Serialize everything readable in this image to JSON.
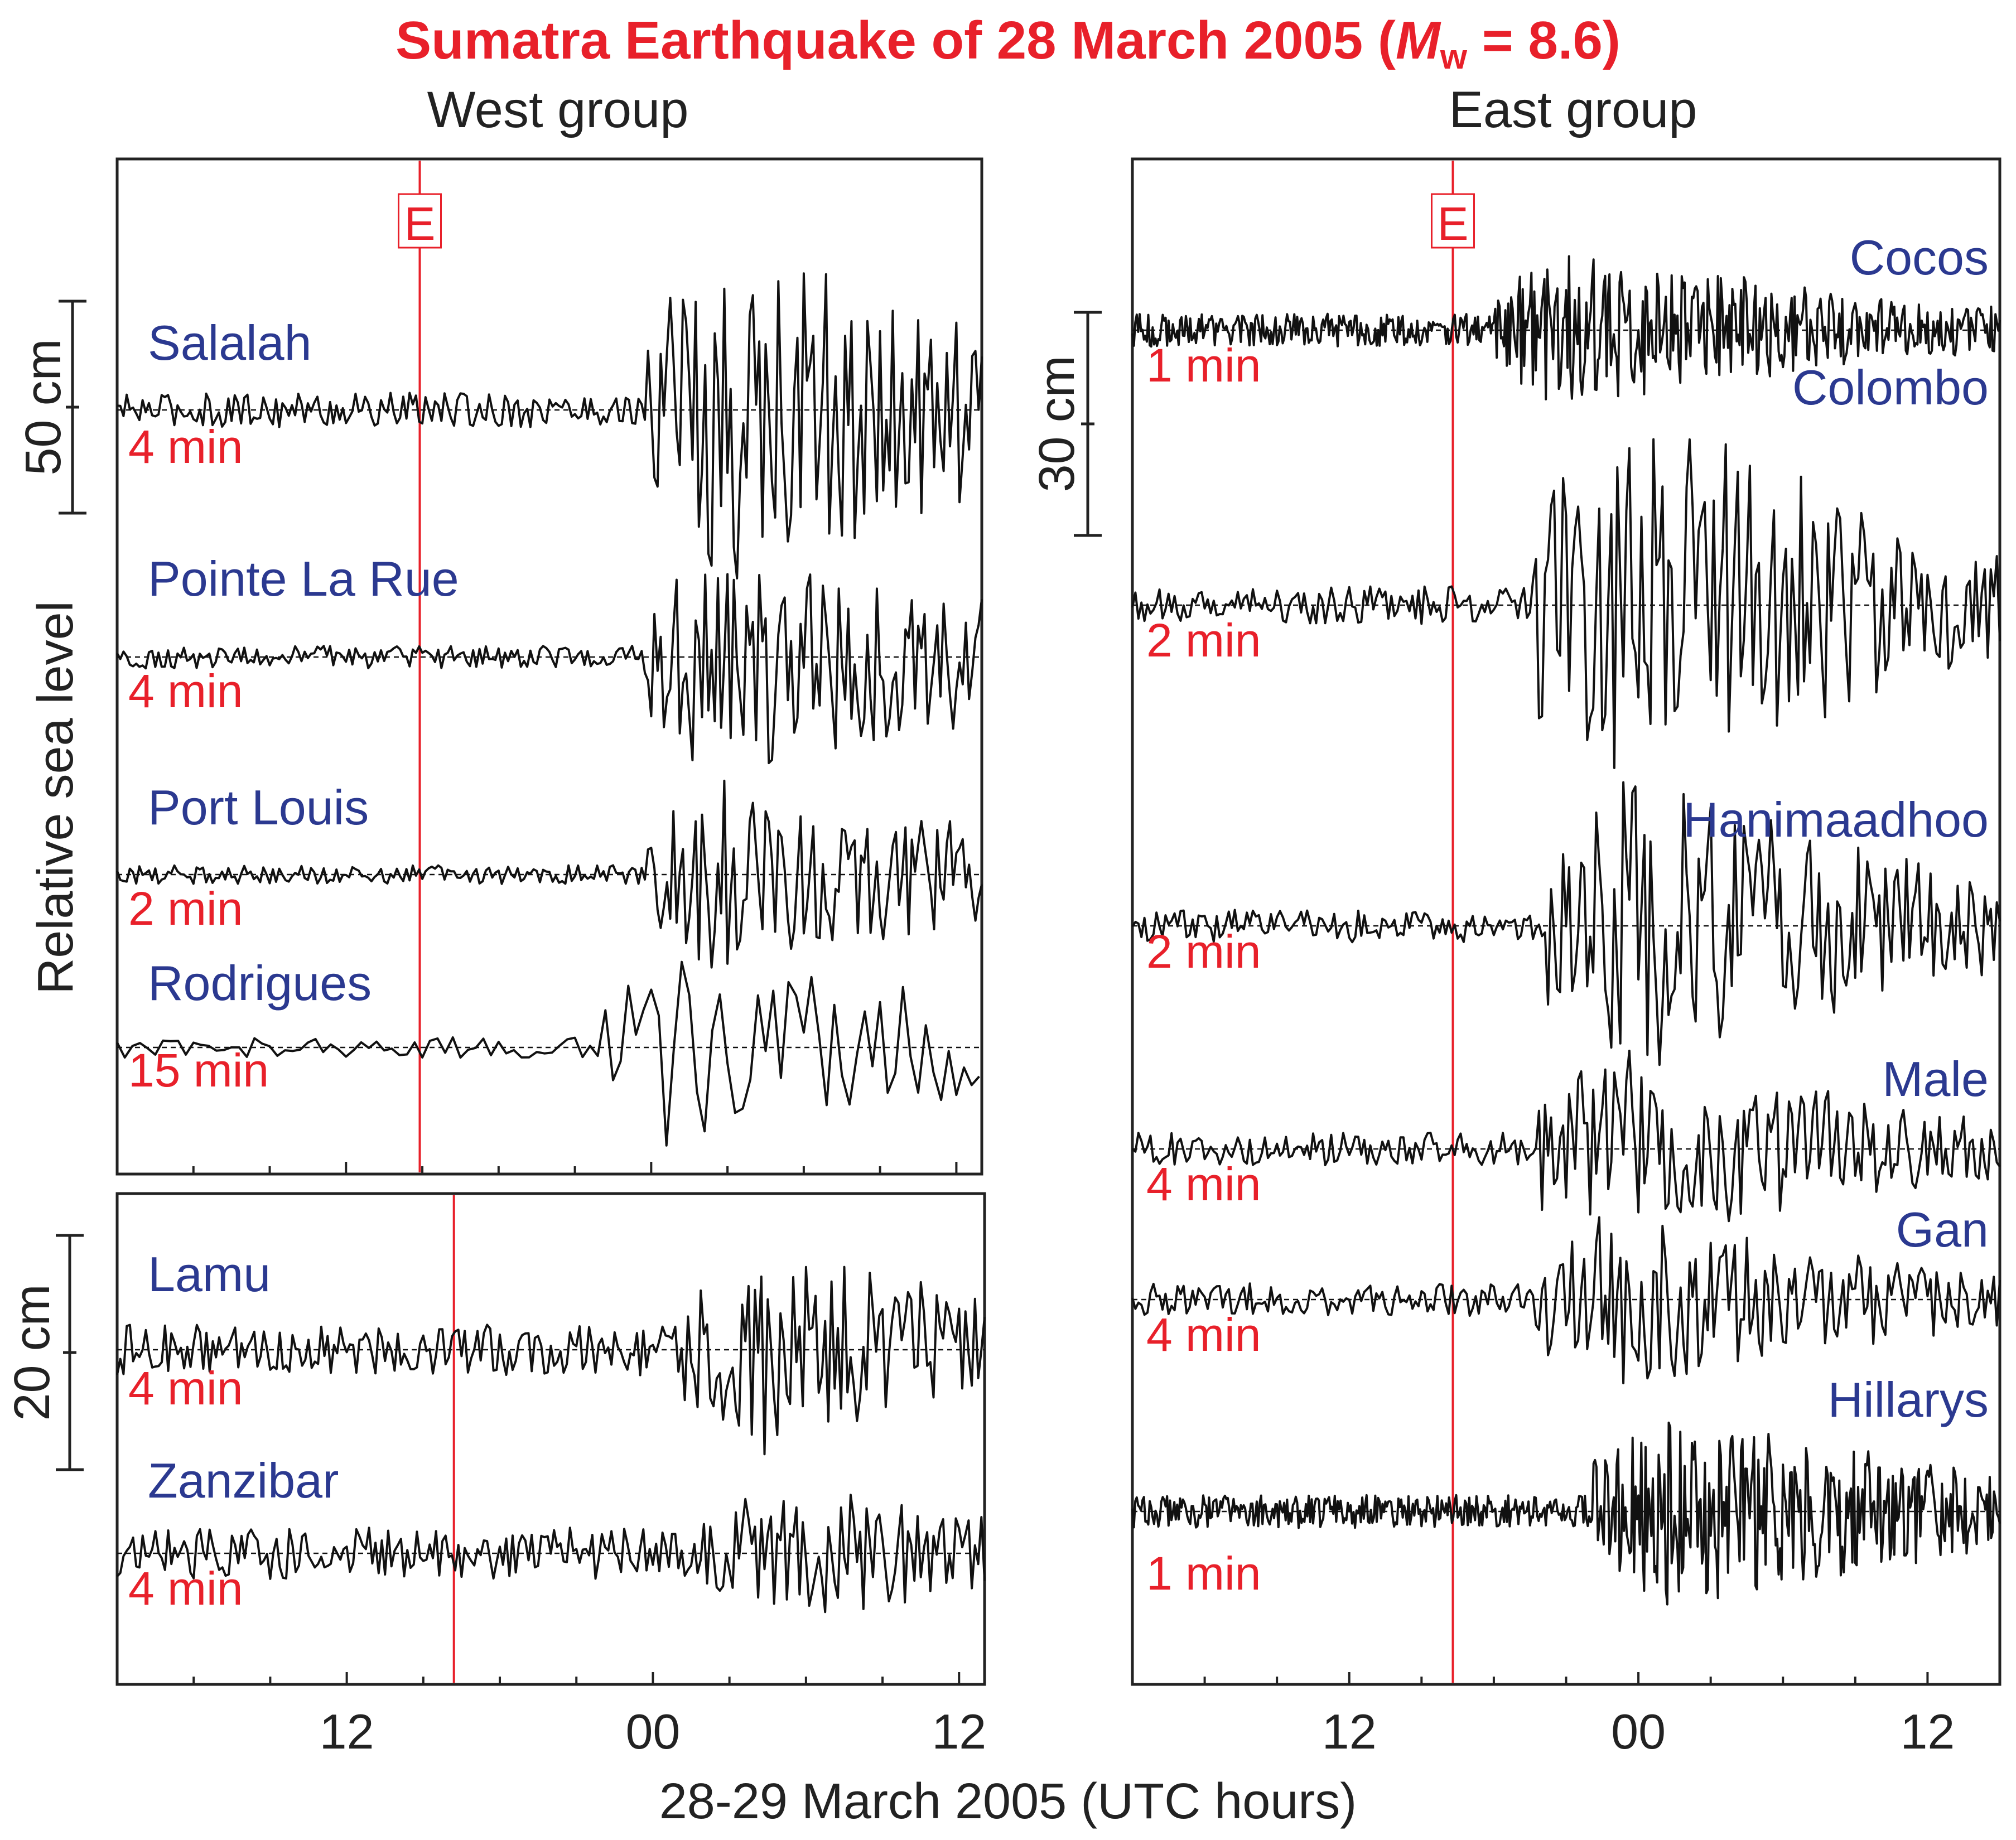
{
  "title": {
    "prefix": "Sumatra  Earthquake of 28 March 2005  (",
    "m": "M",
    "sub": "w",
    "suffix": " = 8.6)"
  },
  "xlabel": "28-29 March 2005 (UTC hours)",
  "ylabel": "Relative sea  level",
  "event_marker": "E",
  "colors": {
    "title": "#e8202a",
    "station": "#2b3990",
    "sampling": "#e8202a",
    "event_line": "#e8202a",
    "trace": "#111111"
  },
  "chart_data": [
    {
      "type": "line",
      "panel": "West group (upper)",
      "group_title": "West group",
      "x_unit": "UTC hours from 00 on 29 March 2005",
      "xlim": [
        -21,
        13
      ],
      "x_ticks": [
        -12,
        0,
        12
      ],
      "tick_labels": [
        "12",
        "00",
        "12"
      ],
      "event_time": -9.1,
      "scale_bar": {
        "label": "50 cm",
        "value_cm": 50
      },
      "series": [
        {
          "name": "Salalah",
          "sampling": "4 min",
          "arrival": -0.2,
          "max_amp_cm": 45
        },
        {
          "name": "Pointe La Rue",
          "sampling": "4 min",
          "arrival": -0.3,
          "max_amp_cm": 30
        },
        {
          "name": "Port Louis",
          "sampling": "2 min",
          "arrival": -0.2,
          "max_amp_cm": 24
        },
        {
          "name": "Rodrigues",
          "sampling": "15 min",
          "arrival": -1.8,
          "max_amp_cm": 27
        }
      ]
    },
    {
      "type": "line",
      "panel": "West group (lower)",
      "x_unit": "UTC hours from 00 on 29 March 2005",
      "xlim": [
        -21,
        13
      ],
      "x_ticks": [
        -12,
        0,
        12
      ],
      "tick_labels": [
        "12",
        "00",
        "12"
      ],
      "event_time": -7.8,
      "scale_bar": {
        "label": "20 cm",
        "value_cm": 20
      },
      "series": [
        {
          "name": "Lamu",
          "sampling": "4 min",
          "arrival": 1.2,
          "max_amp_cm": 9
        },
        {
          "name": "Zanzibar",
          "sampling": "4 min",
          "arrival": 1.8,
          "max_amp_cm": 6
        }
      ]
    },
    {
      "type": "line",
      "panel": "East group",
      "group_title": "East group",
      "x_unit": "UTC hours from 00 on 29 March 2005",
      "xlim": [
        -21,
        15
      ],
      "x_ticks": [
        -12,
        0,
        12
      ],
      "tick_labels": [
        "12",
        "00",
        "12"
      ],
      "event_time": -7.7,
      "scale_bar": {
        "label": "30 cm",
        "value_cm": 30
      },
      "series": [
        {
          "name": "Cocos",
          "sampling": "1 min",
          "arrival": -6.0,
          "max_amp_cm": 11
        },
        {
          "name": "Colombo",
          "sampling": "2 min",
          "arrival": -4.5,
          "max_amp_cm": 29
        },
        {
          "name": "Hanimaadhoo",
          "sampling": "2 min",
          "arrival": -3.8,
          "max_amp_cm": 22
        },
        {
          "name": "Male",
          "sampling": "4 min",
          "arrival": -4.3,
          "max_amp_cm": 14
        },
        {
          "name": "Gan",
          "sampling": "4 min",
          "arrival": -4.3,
          "max_amp_cm": 13
        },
        {
          "name": "Hillarys",
          "sampling": "1 min",
          "arrival": -1.9,
          "max_amp_cm": 14
        }
      ]
    }
  ]
}
